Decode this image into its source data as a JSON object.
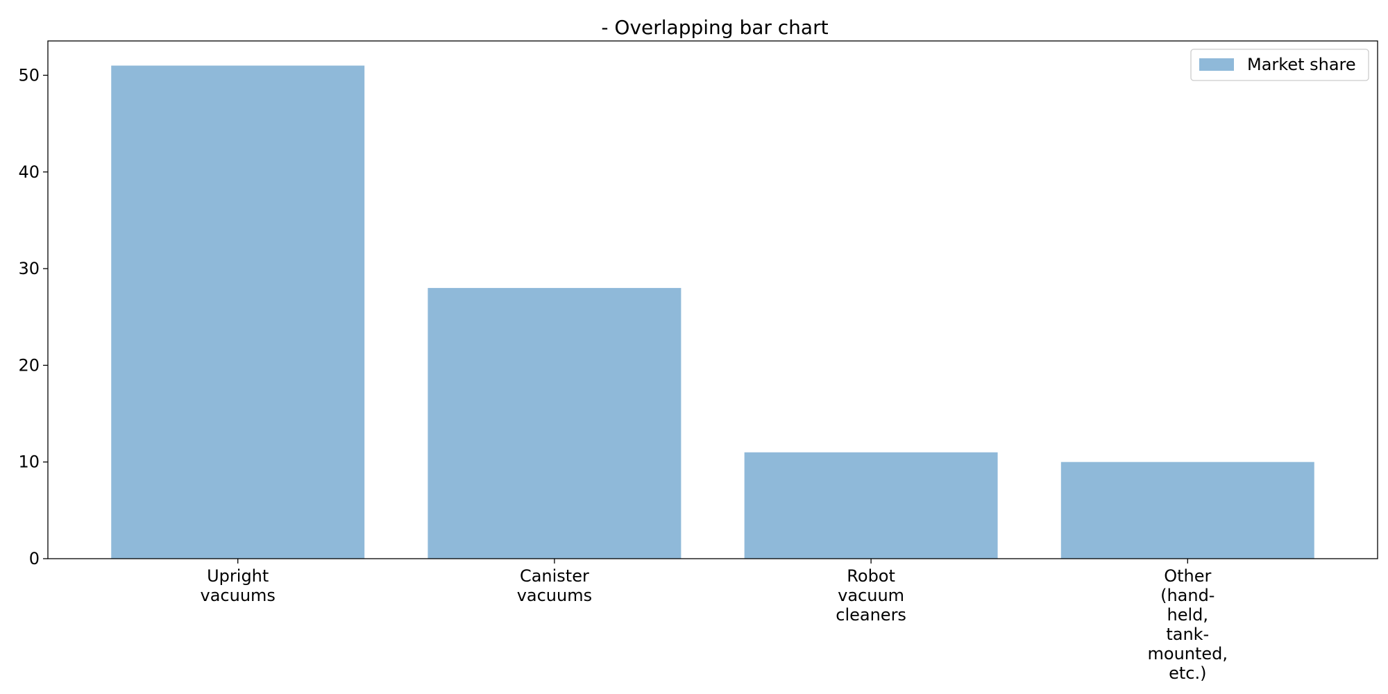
{
  "chart_data": {
    "type": "bar",
    "title": "- Overlapping bar chart",
    "xlabel": "",
    "ylabel": "",
    "categories": [
      [
        "Upright",
        "vacuums"
      ],
      [
        "Canister",
        "vacuums"
      ],
      [
        "Robot",
        "vacuum",
        "cleaners"
      ],
      [
        "Other",
        "(hand-",
        "held,",
        "tank-",
        "mounted,",
        "etc.)"
      ]
    ],
    "series": [
      {
        "name": "Market share",
        "values": [
          51,
          28,
          11,
          10
        ],
        "color": "#8fb9d9"
      }
    ],
    "ylim": [
      0,
      53.55
    ],
    "yticks": [
      0,
      10,
      20,
      30,
      40,
      50
    ],
    "grid": false,
    "legend": "top-right"
  }
}
